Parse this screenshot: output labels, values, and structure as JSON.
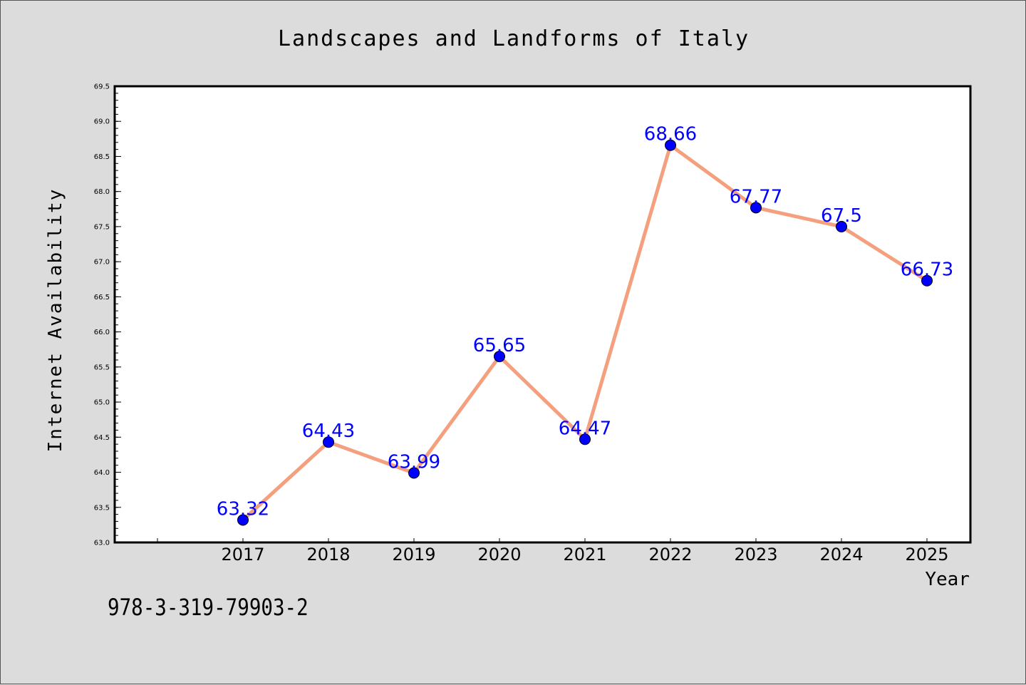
{
  "footer": {
    "code": "978-3-319-79903-2"
  },
  "chart_data": {
    "type": "line",
    "title": "Landscapes and Landforms of Italy",
    "xlabel": "Year",
    "ylabel": "Internet Availability",
    "categories": [
      "2017",
      "2018",
      "2019",
      "2020",
      "2021",
      "2022",
      "2023",
      "2024",
      "2025"
    ],
    "values": [
      63.32,
      64.43,
      63.99,
      65.65,
      64.47,
      68.66,
      67.77,
      67.5,
      66.73
    ],
    "data_labels": [
      "63.32",
      "64.43",
      "63.99",
      "65.65",
      "64.47",
      "68.66",
      "67.77",
      "67.5",
      "66.73"
    ],
    "ylim": [
      63.0,
      69.5
    ],
    "y_ticks": [
      "63.0",
      "63.5",
      "64.0",
      "64.5",
      "65.0",
      "65.5",
      "66.0",
      "66.5",
      "67.0",
      "67.5",
      "68.0",
      "68.5",
      "69.0",
      "69.5"
    ],
    "grid": false,
    "legend": "none",
    "colors": {
      "line": "#f4a07e",
      "marker": "#0000ff",
      "marker_edge": "#000000",
      "data_label": "#0000ff",
      "background": "#dcdcdc",
      "plot_background": "#ffffff"
    }
  }
}
